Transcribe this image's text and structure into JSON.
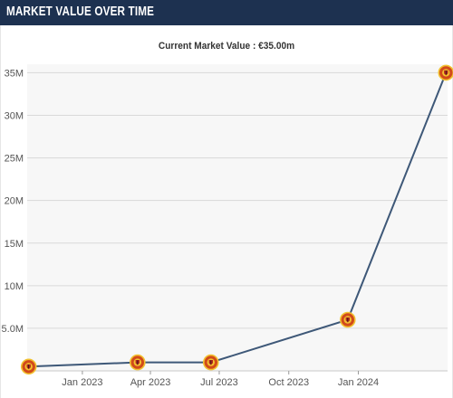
{
  "header": {
    "title": "MARKET VALUE OVER TIME"
  },
  "colors": {
    "header_bg": "#1d3150",
    "plot_bg": "#f7f7f7",
    "gridline": "#d9d9d9",
    "line": "#3e5878",
    "marker_fill": "#d24a1a",
    "marker_accent": "#f2c230"
  },
  "chart_data": {
    "type": "line",
    "title": "Current Market Value : €35.00m",
    "xlabel": "",
    "ylabel": "",
    "ylim": [
      0,
      36000000
    ],
    "y_ticks": [
      5000000,
      10000000,
      15000000,
      20000000,
      25000000,
      30000000,
      35000000
    ],
    "y_tick_labels": [
      "5.0M",
      "10M",
      "15M",
      "20M",
      "25M",
      "30M",
      "35M"
    ],
    "x_range": [
      "2022-10-20",
      "2024-04-28"
    ],
    "x_ticks": [
      "2023-01-01",
      "2023-04-01",
      "2023-07-01",
      "2023-10-01",
      "2024-01-01"
    ],
    "x_tick_labels": [
      "Jan 2023",
      "Apr 2023",
      "Jul 2023",
      "Oct 2023",
      "Jan 2024"
    ],
    "grid": true,
    "marker_icon": "club-crest-icon",
    "series": [
      {
        "x": [
          "2022-10-22",
          "2023-03-15",
          "2023-06-20",
          "2023-12-18",
          "2024-04-26"
        ],
        "values": [
          500000,
          1000000,
          1000000,
          6000000,
          35000000
        ]
      }
    ]
  }
}
